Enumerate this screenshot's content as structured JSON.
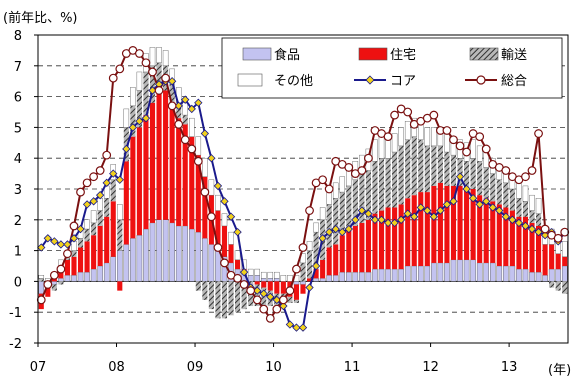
{
  "chart_data": {
    "type": "bar",
    "unit_label": "(前年比、%)",
    "x_unit_label": "(年)",
    "ylim": [
      -2,
      8
    ],
    "yticks": [
      -2,
      -1,
      0,
      1,
      2,
      3,
      4,
      5,
      6,
      7,
      8
    ],
    "ytick_labels": [
      "-2",
      "-1",
      "0",
      "1",
      "2",
      "3",
      "4",
      "5",
      "6",
      "7",
      "8"
    ],
    "xtick_labels": [
      "07",
      "08",
      "09",
      "10",
      "11",
      "12",
      "13"
    ],
    "grid": "horizontal dashed",
    "legend_position": "top-right",
    "colors": {
      "food": "#c3c3f0",
      "housing": "#ee1111",
      "transport": "hatched gray",
      "other": "#ffffff",
      "core": "#1a1a8c",
      "core_marker": "#f2d21c",
      "headline": "#7a1010"
    },
    "start_label": "07",
    "series": [
      {
        "name": "食品",
        "key": "food",
        "kind": "stacked-bar",
        "values": [
          -0.4,
          -0.2,
          -0.1,
          0.1,
          0.2,
          0.2,
          0.3,
          0.3,
          0.4,
          0.5,
          0.6,
          0.8,
          1.0,
          1.2,
          1.4,
          1.5,
          1.7,
          1.9,
          2.0,
          2.0,
          1.9,
          1.8,
          1.8,
          1.7,
          1.6,
          1.4,
          1.2,
          1.0,
          0.8,
          0.6,
          0.4,
          0.3,
          0.2,
          0.2,
          0.1,
          0.1,
          0.1,
          0.0,
          0.0,
          -0.1,
          -0.1,
          0.0,
          0.1,
          0.1,
          0.2,
          0.2,
          0.3,
          0.3,
          0.3,
          0.3,
          0.3,
          0.4,
          0.4,
          0.4,
          0.4,
          0.4,
          0.5,
          0.5,
          0.5,
          0.5,
          0.6,
          0.6,
          0.6,
          0.7,
          0.7,
          0.7,
          0.7,
          0.6,
          0.6,
          0.6,
          0.5,
          0.5,
          0.5,
          0.4,
          0.4,
          0.3,
          0.3,
          0.2,
          0.4,
          0.4,
          0.5
        ]
      },
      {
        "name": "住宅",
        "key": "housing",
        "kind": "stacked-bar",
        "values": [
          -0.5,
          -0.3,
          0.1,
          0.4,
          0.5,
          0.6,
          0.8,
          1.0,
          1.1,
          1.3,
          1.5,
          1.8,
          -0.3,
          2.7,
          3.3,
          3.5,
          3.7,
          3.9,
          4.1,
          4.2,
          3.9,
          3.5,
          3.3,
          3.0,
          2.5,
          2.0,
          1.6,
          1.3,
          1.0,
          0.6,
          0.3,
          0.1,
          0.0,
          -0.1,
          -0.2,
          -0.3,
          -0.4,
          -0.4,
          -0.5,
          -0.5,
          -0.3,
          0.1,
          0.3,
          0.6,
          0.9,
          1.0,
          1.2,
          1.4,
          1.5,
          1.6,
          1.7,
          1.8,
          1.9,
          2.0,
          2.0,
          2.1,
          2.2,
          2.3,
          2.4,
          2.4,
          2.5,
          2.6,
          2.5,
          2.4,
          2.4,
          2.3,
          2.3,
          2.2,
          2.1,
          2.0,
          2.0,
          1.9,
          1.8,
          1.7,
          1.7,
          1.6,
          1.5,
          1.0,
          0.8,
          0.5,
          0.3
        ]
      },
      {
        "name": "輸送",
        "key": "transport",
        "kind": "stacked-bar",
        "values": [
          0.1,
          0.0,
          -0.2,
          -0.1,
          0.1,
          0.2,
          0.3,
          0.4,
          0.4,
          0.5,
          0.6,
          0.7,
          1.0,
          1.1,
          1.0,
          1.2,
          1.4,
          1.2,
          1.0,
          0.8,
          0.6,
          0.5,
          0.3,
          0.0,
          -0.3,
          -0.6,
          -0.9,
          -1.2,
          -1.2,
          -1.1,
          -1.0,
          -0.9,
          -0.8,
          -0.7,
          -0.6,
          -0.5,
          -0.4,
          -0.3,
          -0.2,
          -0.1,
          0.6,
          0.9,
          1.2,
          1.3,
          1.4,
          1.5,
          1.4,
          1.4,
          1.5,
          1.6,
          1.6,
          1.7,
          1.7,
          1.6,
          1.8,
          1.9,
          1.9,
          1.9,
          1.7,
          1.5,
          1.3,
          1.2,
          1.1,
          1.0,
          0.9,
          0.9,
          1.0,
          1.1,
          1.0,
          0.9,
          0.8,
          0.8,
          0.7,
          0.6,
          0.5,
          0.4,
          0.4,
          0.0,
          -0.2,
          -0.3,
          -0.4
        ]
      },
      {
        "name": "その他",
        "key": "other",
        "kind": "stacked-bar",
        "values": [
          0.1,
          0.1,
          0.2,
          0.2,
          0.2,
          0.3,
          0.3,
          0.3,
          0.4,
          0.4,
          0.4,
          0.5,
          0.5,
          0.6,
          0.6,
          0.6,
          0.6,
          0.6,
          0.5,
          0.5,
          0.5,
          0.5,
          0.5,
          0.6,
          0.6,
          0.6,
          0.5,
          0.5,
          0.4,
          0.4,
          0.3,
          0.3,
          0.2,
          0.2,
          0.2,
          0.2,
          0.2,
          0.2,
          0.2,
          0.2,
          0.3,
          0.3,
          0.3,
          0.4,
          0.4,
          0.5,
          0.5,
          0.6,
          0.6,
          0.6,
          0.7,
          0.7,
          0.7,
          0.7,
          0.6,
          0.6,
          0.6,
          0.6,
          0.6,
          0.6,
          0.6,
          0.6,
          0.6,
          0.6,
          0.6,
          0.6,
          0.6,
          0.5,
          0.5,
          0.5,
          0.5,
          0.5,
          0.5,
          0.5,
          0.5,
          0.5,
          0.5,
          0.5,
          0.5,
          0.5,
          0.5
        ]
      },
      {
        "name": "コア",
        "key": "core",
        "kind": "line-diamond",
        "values": [
          1.1,
          1.4,
          1.3,
          1.2,
          1.2,
          1.4,
          1.7,
          2.5,
          2.6,
          2.8,
          3.2,
          3.5,
          3.3,
          4.3,
          5.0,
          5.2,
          5.3,
          6.2,
          6.4,
          6.5,
          6.5,
          5.7,
          5.9,
          5.6,
          5.8,
          4.8,
          4.0,
          3.1,
          2.6,
          2.1,
          1.6,
          0.3,
          -0.2,
          -0.3,
          -0.4,
          -0.5,
          -0.6,
          -0.8,
          -1.4,
          -1.5,
          -1.5,
          -0.2,
          0.5,
          1.4,
          1.6,
          1.7,
          1.6,
          1.7,
          2.0,
          2.3,
          2.2,
          2.0,
          2.0,
          1.9,
          1.9,
          2.0,
          2.2,
          2.1,
          2.4,
          2.3,
          2.1,
          2.3,
          2.5,
          2.6,
          3.4,
          3.0,
          2.7,
          2.5,
          2.6,
          2.4,
          2.3,
          2.1,
          2.0,
          1.9,
          1.8,
          1.7,
          1.6,
          1.5,
          1.6,
          1.3,
          1.6
        ]
      },
      {
        "name": "総合",
        "key": "headline",
        "kind": "line-circle",
        "values": [
          -0.6,
          -0.1,
          0.2,
          0.4,
          0.9,
          1.8,
          2.9,
          3.2,
          3.4,
          3.6,
          4.1,
          6.6,
          6.9,
          7.4,
          7.5,
          7.4,
          7.1,
          6.8,
          6.2,
          6.6,
          5.7,
          5.1,
          4.6,
          4.3,
          3.9,
          2.9,
          2.1,
          1.1,
          0.6,
          0.2,
          0.1,
          -0.1,
          -0.3,
          -0.6,
          -0.9,
          -1.2,
          -0.9,
          -0.6,
          -0.3,
          0.4,
          1.1,
          2.3,
          3.2,
          3.3,
          3.0,
          3.9,
          3.8,
          3.7,
          3.5,
          3.6,
          4.0,
          4.9,
          4.8,
          4.7,
          5.4,
          5.6,
          5.5,
          5.1,
          5.2,
          5.3,
          5.4,
          4.9,
          4.9,
          4.6,
          4.4,
          4.2,
          4.8,
          4.7,
          4.3,
          3.8,
          3.7,
          3.6,
          3.4,
          3.3,
          3.4,
          3.6,
          4.8,
          1.7,
          1.5,
          1.4,
          1.6
        ]
      }
    ]
  }
}
